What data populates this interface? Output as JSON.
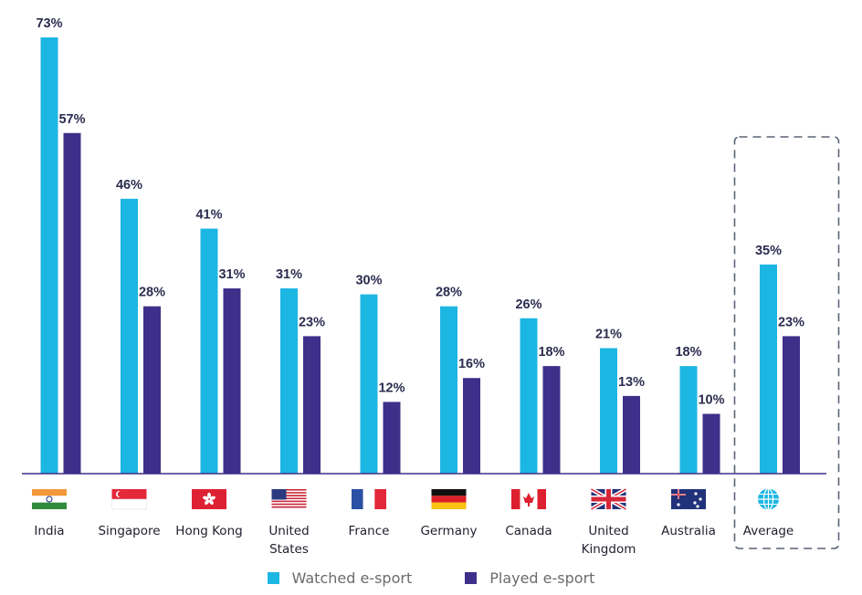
{
  "chart_data": {
    "type": "bar",
    "categories": [
      "India",
      "Singapore",
      "Hong Kong",
      "United States",
      "France",
      "Germany",
      "Canada",
      "United Kingdom",
      "Australia",
      "Average"
    ],
    "category_lines": [
      [
        "India"
      ],
      [
        "Singapore"
      ],
      [
        "Hong Kong"
      ],
      [
        "United",
        "States"
      ],
      [
        "France"
      ],
      [
        "Germany"
      ],
      [
        "Canada"
      ],
      [
        "United",
        "Kingdom"
      ],
      [
        "Australia"
      ],
      [
        "Average"
      ]
    ],
    "flags": [
      "india-flag-icon",
      "singapore-flag-icon",
      "hong-kong-flag-icon",
      "us-flag-icon",
      "france-flag-icon",
      "germany-flag-icon",
      "canada-flag-icon",
      "uk-flag-icon",
      "australia-flag-icon",
      "globe-icon"
    ],
    "series": [
      {
        "name": "Watched e-sport",
        "color": "#1cb6e3",
        "values": [
          73,
          46,
          41,
          31,
          30,
          28,
          26,
          21,
          18,
          35
        ],
        "labels": [
          "73%",
          "46%",
          "41%",
          "31%",
          "30%",
          "28%",
          "26%",
          "21%",
          "18%",
          "35%"
        ]
      },
      {
        "name": "Played e-sport",
        "color": "#3e2f8a",
        "values": [
          57,
          28,
          31,
          23,
          12,
          16,
          18,
          13,
          10,
          23
        ],
        "labels": [
          "57%",
          "28%",
          "31%",
          "23%",
          "12%",
          "16%",
          "18%",
          "13%",
          "10%",
          "23%"
        ]
      }
    ],
    "highlighted_category": "Average",
    "ylim": [
      0,
      73
    ],
    "grid": false,
    "legend_position": "bottom"
  },
  "colors": {
    "axis": "#3e2f8a",
    "label_text": "#2b2d4f",
    "highlight_border": "#5a6275"
  }
}
